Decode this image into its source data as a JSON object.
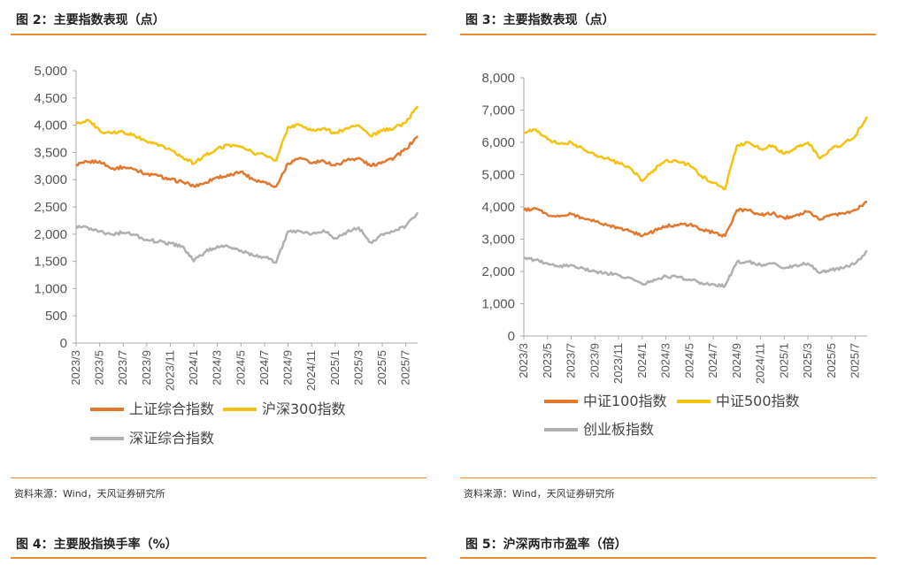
{
  "colors": {
    "orange": "#e2782e",
    "yellow": "#f5c20f",
    "gray": "#b0b0b0",
    "rule": "#f08a2c"
  },
  "months": [
    "2023/3",
    "2023/4",
    "2023/5",
    "2023/6",
    "2023/7",
    "2023/8",
    "2023/9",
    "2023/10",
    "2023/11",
    "2023/12",
    "2024/1",
    "2024/2",
    "2024/3",
    "2024/4",
    "2024/5",
    "2024/6",
    "2024/7",
    "2024/8",
    "2024/9",
    "2024/10",
    "2024/11",
    "2024/12",
    "2025/1",
    "2025/2",
    "2025/3",
    "2025/4",
    "2025/5",
    "2025/6",
    "2025/7",
    "2025/8"
  ],
  "chart_data": [
    {
      "type": "line",
      "title": "图 2：主要指数表现（点）",
      "source": "资料来源：Wind，天风证券研究所",
      "xlabel": "",
      "ylabel": "",
      "ylim": [
        0,
        5000
      ],
      "yticks": [
        "0",
        "500",
        "1,000",
        "1,500",
        "2,000",
        "2,500",
        "3,000",
        "3,500",
        "4,000",
        "4,500",
        "5,000"
      ],
      "xticks": [
        "2023/3",
        "2023/5",
        "2023/7",
        "2023/9",
        "2023/11",
        "2024/1",
        "2024/3",
        "2024/5",
        "2024/7",
        "2024/9",
        "2024/11",
        "2025/1",
        "2025/3",
        "2025/5",
        "2025/7"
      ],
      "series": [
        {
          "name": "上证综合指数",
          "color": "orange",
          "values": [
            3280,
            3320,
            3340,
            3200,
            3230,
            3190,
            3100,
            3070,
            3000,
            2960,
            2880,
            2950,
            3050,
            3070,
            3150,
            3010,
            2950,
            2880,
            3300,
            3400,
            3300,
            3350,
            3260,
            3360,
            3400,
            3250,
            3330,
            3400,
            3560,
            3800
          ]
        },
        {
          "name": "沪深300指数",
          "color": "yellow",
          "values": [
            4020,
            4100,
            3900,
            3850,
            3880,
            3800,
            3700,
            3620,
            3560,
            3420,
            3300,
            3450,
            3570,
            3640,
            3600,
            3500,
            3450,
            3350,
            3970,
            4000,
            3900,
            3940,
            3850,
            3950,
            4000,
            3800,
            3900,
            3950,
            4050,
            4350
          ]
        },
        {
          "name": "深证综合指数",
          "color": "gray",
          "values": [
            2150,
            2120,
            2050,
            2000,
            2030,
            1980,
            1900,
            1860,
            1830,
            1780,
            1500,
            1680,
            1780,
            1760,
            1700,
            1610,
            1580,
            1480,
            2050,
            2050,
            2000,
            2070,
            1930,
            2040,
            2120,
            1850,
            2000,
            2050,
            2150,
            2400
          ]
        }
      ]
    },
    {
      "type": "line",
      "title": "图 3：主要指数表现（点）",
      "source": "资料来源：Wind，天风证券研究所",
      "xlabel": "",
      "ylabel": "",
      "ylim": [
        0,
        8000
      ],
      "yticks": [
        "0",
        "1,000",
        "2,000",
        "3,000",
        "4,000",
        "5,000",
        "6,000",
        "7,000",
        "8,000"
      ],
      "xticks": [
        "2023/3",
        "2023/5",
        "2023/7",
        "2023/9",
        "2023/11",
        "2024/1",
        "2024/3",
        "2024/5",
        "2024/7",
        "2024/9",
        "2024/11",
        "2025/1",
        "2025/3",
        "2025/5",
        "2025/7"
      ],
      "series": [
        {
          "name": "中证100指数",
          "color": "orange",
          "values": [
            3900,
            3950,
            3750,
            3700,
            3780,
            3650,
            3550,
            3450,
            3350,
            3250,
            3100,
            3250,
            3400,
            3450,
            3450,
            3300,
            3200,
            3100,
            3900,
            3900,
            3750,
            3800,
            3650,
            3750,
            3850,
            3600,
            3750,
            3800,
            3900,
            4150
          ]
        },
        {
          "name": "中证500指数",
          "color": "yellow",
          "values": [
            6300,
            6400,
            6100,
            5950,
            6000,
            5800,
            5600,
            5500,
            5350,
            5200,
            4800,
            5150,
            5450,
            5400,
            5300,
            4950,
            4750,
            4550,
            5900,
            6000,
            5800,
            5900,
            5650,
            5850,
            6000,
            5500,
            5800,
            5950,
            6200,
            6800
          ]
        },
        {
          "name": "创业板指数",
          "color": "gray",
          "values": [
            2400,
            2350,
            2250,
            2150,
            2200,
            2100,
            2000,
            1950,
            1880,
            1800,
            1600,
            1750,
            1850,
            1820,
            1750,
            1650,
            1600,
            1550,
            2300,
            2300,
            2200,
            2250,
            2100,
            2200,
            2250,
            1950,
            2050,
            2100,
            2250,
            2650
          ]
        }
      ]
    }
  ],
  "bottom_titles": [
    "图 4：主要股指换手率（%）",
    "图 5：沪深两市市盈率（倍）"
  ]
}
